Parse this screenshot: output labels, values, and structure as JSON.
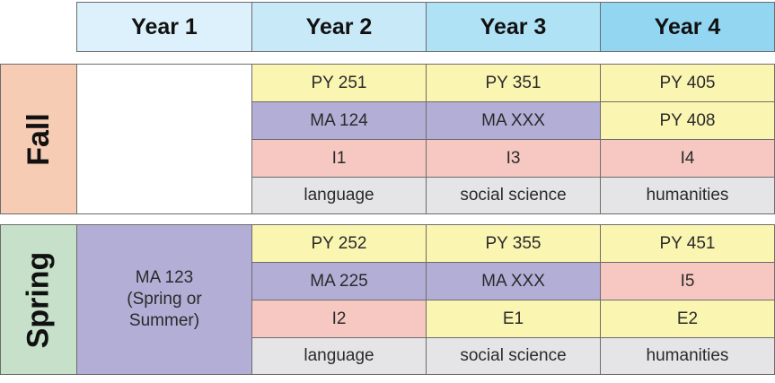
{
  "colors": {
    "year1": "#dcf1fb",
    "year2": "#c8eaf8",
    "year3": "#b0e2f6",
    "year4": "#93d6f2",
    "fall": "#f6ccb4",
    "spring": "#c6e0c9",
    "physics": "#fbf5b2",
    "math": "#b3aed6",
    "intensive": "#f7c8c2",
    "gened": "#e5e5e8",
    "empty": "#ffffff"
  },
  "headers": [
    "Year 1",
    "Year 2",
    "Year 3",
    "Year 4"
  ],
  "semesters": {
    "fall": {
      "label": "Fall",
      "year1": "",
      "rows": [
        [
          {
            "text": "PY 251",
            "kind": "physics"
          },
          {
            "text": "PY 351",
            "kind": "physics"
          },
          {
            "text": "PY 405",
            "kind": "physics"
          }
        ],
        [
          {
            "text": "MA 124",
            "kind": "math"
          },
          {
            "text": "MA XXX",
            "kind": "math"
          },
          {
            "text": "PY 408",
            "kind": "physics"
          }
        ],
        [
          {
            "text": "I1",
            "kind": "intensive"
          },
          {
            "text": "I3",
            "kind": "intensive"
          },
          {
            "text": "I4",
            "kind": "intensive"
          }
        ],
        [
          {
            "text": "language",
            "kind": "gened"
          },
          {
            "text": "social science",
            "kind": "gened"
          },
          {
            "text": "humanities",
            "kind": "gened"
          }
        ]
      ]
    },
    "spring": {
      "label": "Spring",
      "year1": {
        "line1": "MA 123",
        "line2": "(Spring or",
        "line3": "Summer)"
      },
      "rows": [
        [
          {
            "text": "PY 252",
            "kind": "physics"
          },
          {
            "text": "PY 355",
            "kind": "physics"
          },
          {
            "text": "PY 451",
            "kind": "physics"
          }
        ],
        [
          {
            "text": "MA 225",
            "kind": "math"
          },
          {
            "text": "MA XXX",
            "kind": "math"
          },
          {
            "text": "I5",
            "kind": "intensive"
          }
        ],
        [
          {
            "text": "I2",
            "kind": "intensive"
          },
          {
            "text": "E1",
            "kind": "physics"
          },
          {
            "text": "E2",
            "kind": "physics"
          }
        ],
        [
          {
            "text": "language",
            "kind": "gened"
          },
          {
            "text": "social science",
            "kind": "gened"
          },
          {
            "text": "humanities",
            "kind": "gened"
          }
        ]
      ]
    }
  }
}
